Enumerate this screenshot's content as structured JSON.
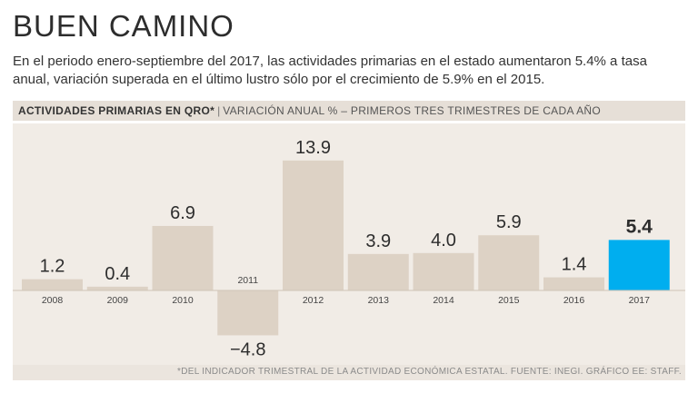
{
  "title": "BUEN CAMINO",
  "subtitle": "En el periodo enero-septiembre del 2017, las actividades primarias en el estado aumentaron 5.4% a tasa anual, variación superada en el último lustro sólo por el crecimiento de 5.9% en el 2015.",
  "header": {
    "bold": "ACTIVIDADES PRIMARIAS EN QRO*",
    "separator": "|",
    "light": "VARIACIÓN ANUAL % – PRIMEROS TRES TRIMESTRES DE CADA AÑO"
  },
  "footer": "*DEL INDICADOR TRIMESTRAL DE LA ACTIVIDAD ECONÓMICA ESTATAL.  FUENTE: INEGI.  GRÁFICO EE: STAFF.",
  "colors": {
    "bar": "#ddd2c5",
    "highlight": "#00aeef",
    "background": "#f1ece6"
  },
  "chart_data": {
    "type": "bar",
    "categories": [
      "2008",
      "2009",
      "2010",
      "2011",
      "2012",
      "2013",
      "2014",
      "2015",
      "2016",
      "2017"
    ],
    "values": [
      1.2,
      0.4,
      6.9,
      -4.8,
      13.9,
      3.9,
      4.0,
      5.9,
      1.4,
      5.4
    ],
    "value_labels": [
      "1.2",
      "0.4",
      "6.9",
      "-4.8",
      "13.9",
      "3.9",
      "4.0",
      "5.9",
      "1.4",
      "5.4"
    ],
    "highlight_category": "2017",
    "title": "ACTIVIDADES PRIMARIAS EN QRO*",
    "xlabel": "",
    "ylabel": "Variación anual %",
    "ylim": [
      -4.8,
      13.9
    ]
  }
}
